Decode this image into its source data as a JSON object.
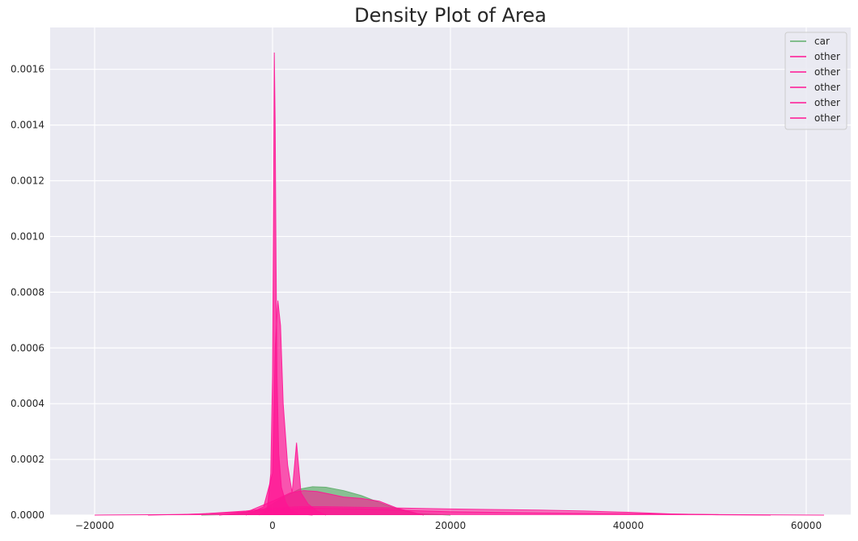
{
  "chart_data": {
    "type": "area",
    "title": "Density Plot of Area",
    "xlabel": "",
    "ylabel": "",
    "xlim": [
      -25000,
      65000
    ],
    "ylim": [
      0,
      0.00175
    ],
    "xticks": [
      -20000,
      0,
      20000,
      40000,
      60000
    ],
    "xtick_labels": [
      "−20000",
      "0",
      "20000",
      "40000",
      "60000"
    ],
    "yticks": [
      0,
      0.0002,
      0.0004,
      0.0006,
      0.0008,
      0.001,
      0.0012,
      0.0014,
      0.0016
    ],
    "ytick_labels": [
      "0.0000",
      "0.0002",
      "0.0004",
      "0.0006",
      "0.0008",
      "0.0010",
      "0.0012",
      "0.0014",
      "0.0016"
    ],
    "grid": true,
    "background": "#eaeaf2",
    "legend_placement": "top-right",
    "series": [
      {
        "name": "car",
        "color": "#5fae6b",
        "fill_opacity": 0.7,
        "x": [
          -8000,
          -4000,
          -1000,
          1000,
          3000,
          4500,
          6000,
          8000,
          10000,
          12000,
          14000,
          16000,
          20000
        ],
        "y": [
          0,
          3e-06,
          2e-05,
          6e-05,
          9.3e-05,
          0.000102,
          0.0001,
          8.8e-05,
          7e-05,
          4.5e-05,
          2.2e-05,
          6e-06,
          0
        ]
      },
      {
        "name": "other",
        "color": "#ff1493",
        "fill_opacity": 0.75,
        "x": [
          -1500,
          -600,
          -200,
          0,
          100,
          200,
          300,
          400,
          500,
          700,
          1000,
          1500,
          2000,
          3000,
          4500
        ],
        "y": [
          0,
          2e-05,
          0.00015,
          0.0005,
          0.00105,
          0.00166,
          0.0014,
          0.0009,
          0.0005,
          0.00022,
          0.0001,
          4.5e-05,
          2e-05,
          4e-06,
          0
        ]
      },
      {
        "name": "other",
        "color": "#ff1493",
        "fill_opacity": 0.7,
        "x": [
          -3000,
          -1000,
          0,
          300,
          600,
          900,
          1200,
          1700,
          2200,
          2700,
          3200,
          4000,
          5000,
          6000
        ],
        "y": [
          0,
          3e-05,
          0.00015,
          0.0006,
          0.00077,
          0.00068,
          0.0004,
          0.00018,
          8e-05,
          0.00026,
          8e-05,
          4e-05,
          1.5e-05,
          0
        ]
      },
      {
        "name": "other",
        "color": "#ff1493",
        "fill_opacity": 0.6,
        "x": [
          -6000,
          -3000,
          0,
          2000,
          3500,
          5000,
          6500,
          8000,
          10000,
          12000,
          14000,
          17000
        ],
        "y": [
          0,
          1e-05,
          5e-05,
          8e-05,
          8.8e-05,
          8.5e-05,
          7.5e-05,
          6.5e-05,
          6e-05,
          5e-05,
          2.5e-05,
          0
        ]
      },
      {
        "name": "other",
        "color": "#ff1493",
        "fill_opacity": 0.55,
        "x": [
          -14000,
          -8000,
          -3000,
          0,
          3000,
          6000,
          10000,
          15000,
          20000,
          25000,
          30000,
          35000,
          40000,
          45000,
          50000,
          56000
        ],
        "y": [
          0,
          4e-06,
          1.5e-05,
          2.5e-05,
          3e-05,
          3e-05,
          2.8e-05,
          2.5e-05,
          2.2e-05,
          2e-05,
          1.8e-05,
          1.5e-05,
          1e-05,
          4e-06,
          1e-06,
          0
        ]
      },
      {
        "name": "other",
        "color": "#ff1493",
        "fill_opacity": 0.5,
        "x": [
          -20000,
          -10000,
          -4000,
          0,
          4000,
          10000,
          20000,
          30000,
          40000,
          50000,
          62000
        ],
        "y": [
          0,
          2e-06,
          1e-05,
          1.8e-05,
          2.5e-05,
          2.2e-05,
          1.2e-05,
          8e-06,
          5e-06,
          2e-06,
          0
        ]
      }
    ]
  }
}
